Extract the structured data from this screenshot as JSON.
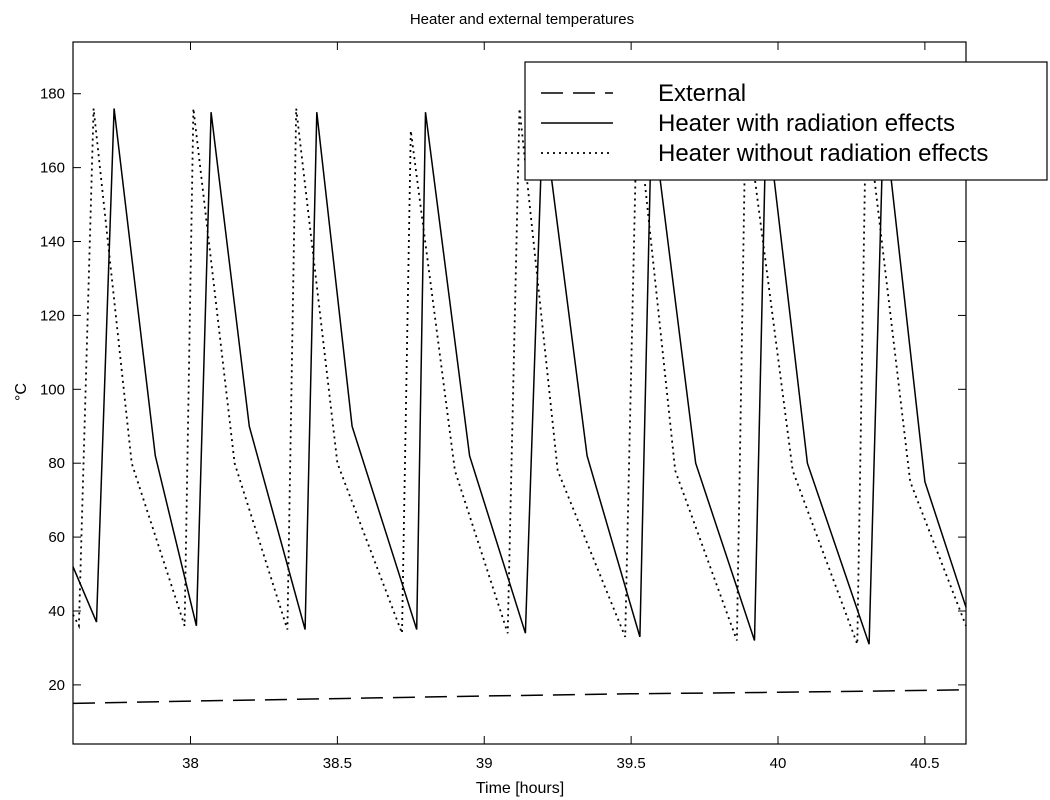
{
  "chart_data": {
    "type": "line",
    "title": "Heater and external temperatures",
    "xlabel": "Time [hours]",
    "ylabel": "°C",
    "xlim": [
      37.6,
      40.64
    ],
    "ylim": [
      4,
      194
    ],
    "xticks": [
      38,
      38.5,
      39,
      39.5,
      40,
      40.5
    ],
    "xtick_labels": [
      "38",
      "38.5",
      "39",
      "39.5",
      "40",
      "40.5"
    ],
    "yticks": [
      20,
      40,
      60,
      80,
      100,
      120,
      140,
      160,
      180
    ],
    "ytick_labels": [
      "20",
      "40",
      "60",
      "80",
      "100",
      "120",
      "140",
      "160",
      "180"
    ],
    "grid": false,
    "legend_position": "top-right",
    "series": [
      {
        "name": "External",
        "style": "dashed",
        "color": "#000000",
        "x": [
          37.6,
          38.0,
          38.5,
          39.0,
          39.5,
          40.0,
          40.5,
          40.64
        ],
        "y": [
          15.0,
          15.6,
          16.3,
          17.0,
          17.6,
          18.0,
          18.5,
          18.7
        ]
      },
      {
        "name": "Heater with radiation effects",
        "style": "solid",
        "color": "#000000",
        "x": [
          37.6,
          37.68,
          37.74,
          37.88,
          38.02,
          38.07,
          38.2,
          38.39,
          38.43,
          38.55,
          38.77,
          38.8,
          38.95,
          39.14,
          39.2,
          39.35,
          39.53,
          39.57,
          39.72,
          39.92,
          39.96,
          40.1,
          40.31,
          40.36,
          40.5,
          40.64
        ],
        "y": [
          52,
          37,
          176,
          82,
          36,
          175,
          90,
          35,
          175,
          90,
          35,
          175,
          82,
          34,
          175,
          82,
          33,
          175,
          80,
          32,
          175,
          80,
          31,
          175,
          75,
          41
        ]
      },
      {
        "name": "Heater without radiation effects",
        "style": "dotted",
        "color": "#000000",
        "x": [
          37.6,
          37.62,
          37.67,
          37.8,
          37.98,
          38.01,
          38.15,
          38.33,
          38.36,
          38.5,
          38.72,
          38.75,
          38.9,
          39.08,
          39.12,
          39.25,
          39.48,
          39.52,
          39.65,
          39.86,
          39.89,
          40.05,
          40.27,
          40.3,
          40.45,
          40.64
        ],
        "y": [
          39,
          36,
          176,
          80,
          36,
          176,
          80,
          35,
          176,
          80,
          34,
          170,
          78,
          34,
          176,
          78,
          33,
          176,
          78,
          32,
          176,
          78,
          31,
          176,
          75,
          36
        ]
      }
    ]
  }
}
